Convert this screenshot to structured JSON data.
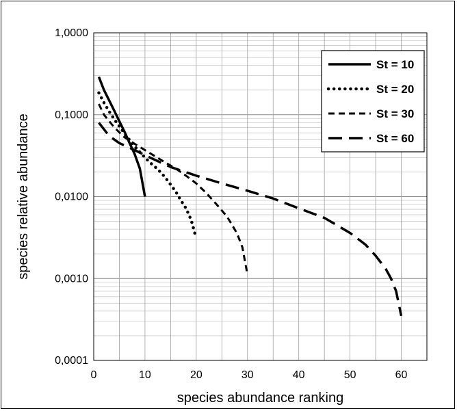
{
  "chart_data": {
    "type": "line",
    "title": "",
    "xlabel": "species  abundance  ranking",
    "ylabel": "species  relative  abundance",
    "xlim": [
      0,
      65
    ],
    "ylim": [
      0.0001,
      1
    ],
    "yscale": "log",
    "xticks": [
      0,
      10,
      20,
      30,
      40,
      50,
      60
    ],
    "xtick_labels": [
      "0",
      "10",
      "20",
      "30",
      "40",
      "50",
      "60"
    ],
    "yticks": [
      0.0001,
      0.001,
      0.01,
      0.1,
      1
    ],
    "ytick_labels": [
      "0,0001",
      "0,0010",
      "0,0100",
      "0,1000",
      "1,0000"
    ],
    "grid": true,
    "legend_position": "top-right",
    "series": [
      {
        "name": "St = 10",
        "style": "solid",
        "x": [
          1,
          2,
          3,
          4,
          5,
          6,
          7,
          8,
          9,
          10
        ],
        "values": [
          0.29,
          0.2,
          0.15,
          0.112,
          0.083,
          0.062,
          0.045,
          0.033,
          0.022,
          0.01
        ]
      },
      {
        "name": "St = 20",
        "style": "dotted",
        "x": [
          1,
          2,
          3,
          4,
          5,
          6,
          7,
          8,
          9,
          10,
          11,
          12,
          13,
          14,
          15,
          16,
          17,
          18,
          19,
          20
        ],
        "values": [
          0.185,
          0.14,
          0.11,
          0.088,
          0.072,
          0.059,
          0.049,
          0.041,
          0.035,
          0.03,
          0.026,
          0.023,
          0.02,
          0.017,
          0.014,
          0.0115,
          0.009,
          0.0072,
          0.0052,
          0.0031
        ]
      },
      {
        "name": "St = 30",
        "style": "short-dash",
        "x": [
          1,
          2,
          4,
          6,
          8,
          10,
          12,
          14,
          16,
          18,
          20,
          22,
          24,
          26,
          27,
          28,
          29,
          30
        ],
        "values": [
          0.135,
          0.1,
          0.07,
          0.053,
          0.044,
          0.037,
          0.031,
          0.026,
          0.022,
          0.018,
          0.0145,
          0.011,
          0.008,
          0.0057,
          0.0045,
          0.0035,
          0.0024,
          0.0011
        ]
      },
      {
        "name": "St = 60",
        "style": "long-dash",
        "x": [
          1,
          3,
          5,
          8,
          10,
          15,
          20,
          25,
          30,
          35,
          40,
          45,
          50,
          53,
          55,
          57,
          58,
          59,
          60
        ],
        "values": [
          0.08,
          0.055,
          0.045,
          0.037,
          0.032,
          0.023,
          0.018,
          0.0145,
          0.0118,
          0.0095,
          0.0072,
          0.0055,
          0.0036,
          0.0026,
          0.0019,
          0.0013,
          0.001,
          0.0007,
          0.00035
        ]
      }
    ]
  }
}
